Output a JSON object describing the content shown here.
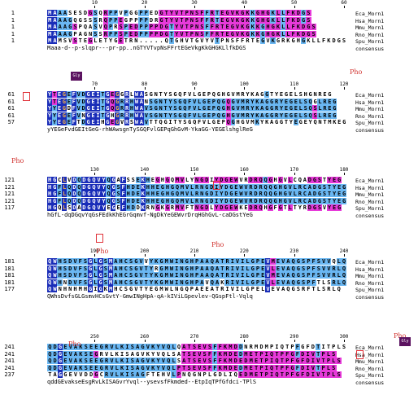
{
  "species": [
    "Eca_Morn1",
    "Hsa_Morn1",
    "Mmu_Morn1",
    "Rno_Morn1",
    "Spu_Morn1"
  ],
  "consensus_label": "consensus",
  "modification_label": "Pho",
  "marker_label": "Gly",
  "colors": {
    "identical": "#1a2db8",
    "similar": "#6ab7f2",
    "pink": "#e73ad9",
    "orange_text": "#f2b24a",
    "white_text": "#ffffff",
    "pho": "#d0312d",
    "marker": "#5b1260"
  },
  "blocks": [
    {
      "ruler": [
        "10",
        "20",
        "30",
        "40",
        "50",
        "60"
      ],
      "starts": [
        "1",
        "1",
        "1",
        "1",
        "1"
      ],
      "seqs": [
        "MAAASESDGSQRPPVPGGPPEDGTYVTPNSFFRTEGVKGKKGHGKLLFKDGS",
        "MAAAGQGSSSRQPPEGPPPPDRGTYVTPNSFFRTEGVKGKKGHGKLLFKDGS",
        "MAAAGSPQASVQPRSPEDPPPPDGTYVTPNSFFRTEGVKGKKGHGKLLFKDGS",
        "MAAAGPAGNSSRPPSPEDPPPPDGTYVTPNSFFRTEGVKGKKGHGKLLFKDGS",
        "MAMSVSTEGLETYGETRN.....QTGHVTGVYVTPNSFFRTEGVKGRKGHGKLLFKDGS"
      ],
      "consensus": "Maaa-d--p-slqpr---pr-pp..nGTYVTvpNsFFrtEGeVkgKkGHGKLlfkDGS",
      "pho_positions": [],
      "marker_positions": []
    },
    {
      "ruler": [
        "70",
        "80",
        "90",
        "100",
        "110",
        "120"
      ],
      "starts": [
        "61",
        "61",
        "61",
        "61",
        "57"
      ],
      "seqs": [
        "YTEGEFVDGEITGEGGRLWASGNTYSGQFVLGEPQGHGVMRYKAGGTYEGELSHGNREG",
        "YTEGEFVDGEITGQGRRHWANSGNTYSGQFVLGEPQGQGVMRYKAGGRYEGELSQGLREG",
        "YYEGDFVDGEITGQGRRHWAVSGNTYSGQFVLGEPQGHGVMRYKAGGRYEGELSQSLREG",
        "YYEGEFVNGEITGHGRRHWAVSGNTYSGQFVLGEPQGHGVMRYKAGGRYEGELSQSLREG",
        "YYEGEFTDGEIHGEGVRSWAVTTQGITYSGQFVLGEPQGHGVMKYKAGGTYEGEYQNTMKEG"
      ],
      "consensus": "yYEGeFvdGEItGeG-rhWAwsgnTySGQFvlGEPqGhGvM-YkaGG-YEGElshglReG",
      "pho_positions": [
        "61",
        "120"
      ],
      "marker_positions": [
        "62"
      ]
    },
    {
      "ruler": [
        "130",
        "140",
        "150",
        "160",
        "170",
        "180"
      ],
      "starts": [
        "121",
        "121",
        "121",
        "121",
        "117"
      ],
      "seqs": [
        "HGCLVDQDGQVYQGAFSSEKHEGHGQMVLYNGDIYDGEWVRDRQQGHGVLCQADGSTYEG",
        "HGFLQDQDGQVYQGSFHDEKHHEGHGQMVLRNGDIYDGEWVRDRQQGHGVLRCADGSTYEG",
        "HGFLQDQDGQVYQGSFHDEKHHEGHGQMVLRNGDIYDGEWVRDRQQGHGVLRCADGSTYEG",
        "HGFLQDQDGQVYQGSFHDEKHHEGHGQMVLRNGDIYDGEWVRDRQQGHGVLRCADGSTYEG",
        "HGQLSDADGQVYEGEFHDDKRNGKGRMVFTNGDLYDGEWKEDRQHGFGTLTYRDGSVYEG"
      ],
      "consensus": "hGfL-dqDGqvYqGsFEdkKhEGrGqmvf-NgDkYeGEWvrDrqHGhGvL-caDGstYeG",
      "pho_positions": [
        "137",
        "157"
      ],
      "marker_positions": []
    },
    {
      "ruler": [
        "190",
        "200",
        "210",
        "220",
        "230",
        "240"
      ],
      "starts": [
        "181",
        "181",
        "181",
        "181",
        "177"
      ],
      "seqs": [
        "QWHSDVFSGLGSMAHCSGVVYKGMWINGHPAAQATRIVILGPEVMEVAQGSPFSVVQLQ",
        "QWHSDVFSGLGSMAHCSGVTYRGMWINGHPAAQATRIVILGPEVLEVAQGSPFSVVRLQ",
        "QWHSDVFSGLGSMAHCSGVTYKGMWINGHPAAQATRIVILGPEVMEVAQGSPFSVVRLQ",
        "QWHNDVFSGLGSMAHCSGVTYKGMWINGHPAVQAKRIVILGPEVLEVAQGSPFTLSRLQ",
        "QWNHNHMHGIGKMHCSGVTYEGMWLNGQPAEEATRIVILGPELVEVAQGSRFTLSRLQ"
      ],
      "consensus": "QWhsDvfsGLGsmvHCsGvtY-GmwINgHpA-qA-kIViLGpevlev-QGspFtl-Vqlq",
      "pho_positions": [
        "186"
      ],
      "marker_positions": [
        "240"
      ]
    },
    {
      "ruler": [
        "250",
        "260",
        "270",
        "280",
        "290",
        "300"
      ],
      "starts": [
        "241",
        "241",
        "241",
        "241",
        "237"
      ],
      "seqs": [
        "QDGEVAKSEEGRVLKISAGVKYVQLQATSEVSFFKMDDNRMDMPIQTPFGFDTITPLS",
        "QDGEVAKSEGRVLKISAGVKYVQLSATSEVSFFKMDEDMETPIQTPFGFDIVTPLS",
        "QDGEVAKSEEGRVLKISAGVKYVQLSATSEVSFFKMDEDMETPIQTPFGFDIVTPLS",
        "QDGEVAKSEEGRVLKISAGVKYVQLPTSEVSFFKMDEDMETPIQTPFGFDIVTPLS",
        "TAGGEVVDDGCRVLKISAGFTEHVLPNQGNPLGDLIQEDMETPIQTPFGFDIVTPLS"
      ],
      "consensus": "qddGEvakseEsgRvLkISAGvrYvql--ysevsfFkmded--EtpIqTPfGfdci-TPlS",
      "pho_positions": [
        "243",
        "300"
      ],
      "marker_positions": [
        "299"
      ]
    }
  ]
}
